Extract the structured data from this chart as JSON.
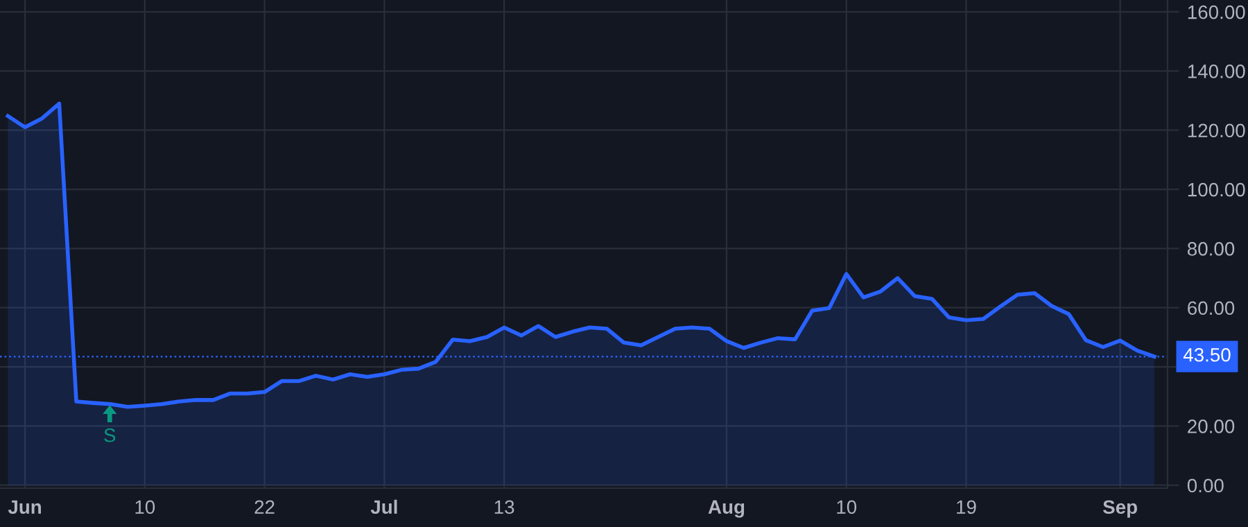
{
  "chart_data": {
    "type": "area",
    "categories": [
      null,
      "Jun",
      null,
      null,
      null,
      null,
      null,
      null,
      "10",
      null,
      null,
      null,
      null,
      null,
      null,
      "22",
      null,
      null,
      null,
      null,
      null,
      null,
      "Jul",
      null,
      null,
      null,
      null,
      null,
      null,
      "13",
      null,
      null,
      null,
      null,
      null,
      null,
      null,
      null,
      null,
      null,
      null,
      null,
      "Aug",
      null,
      null,
      null,
      null,
      null,
      null,
      "10",
      null,
      null,
      null,
      null,
      null,
      null,
      "19",
      null,
      null,
      null,
      null,
      null,
      null,
      null,
      null,
      "Sep",
      null,
      null
    ],
    "series": [
      {
        "color": "#2962ff",
        "values": [
          124.8,
          121,
          124,
          129,
          28.3,
          27.8,
          27.4,
          26.5,
          26.9,
          27.4,
          28.3,
          28.8,
          28.8,
          31,
          31,
          31.5,
          35.2,
          35.2,
          37,
          35.7,
          37.5,
          36.6,
          37.5,
          39,
          39.4,
          41.7,
          49.2,
          48.7,
          50.1,
          53.3,
          50.6,
          53.8,
          50.1,
          51.9,
          53.3,
          52.9,
          48.2,
          47.3,
          50.1,
          52.9,
          53.3,
          52.9,
          48.7,
          46.4,
          48.2,
          49.7,
          49.3,
          59,
          59.9,
          71.4,
          63.5,
          65.5,
          70,
          63.9,
          63,
          56.7,
          55.8,
          56.2,
          60.4,
          64.4,
          64.9,
          60.6,
          57.8,
          49,
          46.7,
          48.9,
          45.5,
          43.5
        ]
      }
    ],
    "ylim": [
      -1,
      164
    ],
    "yticks": [
      {
        "value": 0,
        "label": "0.00"
      },
      {
        "value": 20,
        "label": "20.00"
      },
      {
        "value": 40,
        "label": null
      },
      {
        "value": 60,
        "label": "60.00"
      },
      {
        "value": 80,
        "label": "80.00"
      },
      {
        "value": 100,
        "label": "100.00"
      },
      {
        "value": 120,
        "label": "120.00"
      },
      {
        "value": 140,
        "label": "140.00"
      },
      {
        "value": 160,
        "label": "160.00"
      }
    ],
    "ref_lines": [
      {
        "axis": "y",
        "value": 43.5,
        "label": "43.50",
        "color": "#2962ff",
        "line_style": "dotted"
      }
    ],
    "annotations": [
      "S"
    ],
    "grid": true
  }
}
